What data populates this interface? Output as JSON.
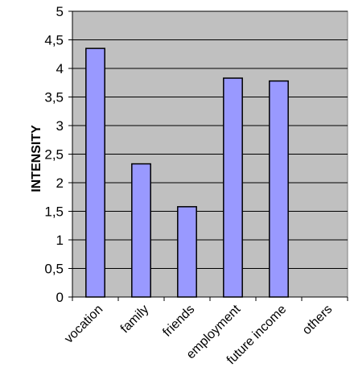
{
  "chart_data": {
    "type": "bar",
    "title": "",
    "xlabel": "",
    "ylabel": "INTENSITY",
    "categories": [
      "vocation",
      "family",
      "friends",
      "employment",
      "future income",
      "others"
    ],
    "values": [
      4.35,
      2.33,
      1.58,
      3.83,
      3.78,
      0
    ],
    "ylim": [
      0,
      5
    ],
    "yticks": [
      0,
      0.5,
      1,
      1.5,
      2,
      2.5,
      3,
      3.5,
      4,
      4.5,
      5
    ],
    "ytick_labels": [
      "0",
      "0,5",
      "1",
      "1,5",
      "2",
      "2,5",
      "3",
      "3,5",
      "4",
      "4,5",
      "5"
    ],
    "grid": true,
    "legend": "none",
    "colors": {
      "plot_background": "#c0c0c0",
      "bar_fill": "#9999ff",
      "bar_stroke": "#000000",
      "gridline": "#000000",
      "plot_border": "#808080"
    }
  }
}
